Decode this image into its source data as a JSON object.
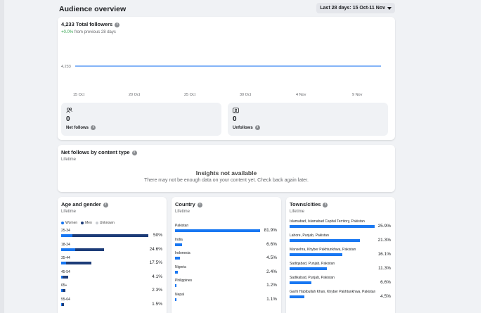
{
  "header": {
    "title": "Audience overview",
    "date_range": "Last 28 days: 15 Oct-11 Nov"
  },
  "overview": {
    "title": "4,233 Total followers",
    "delta_value": "+0.0%",
    "delta_suffix": " from previous 28 days",
    "net_follows": {
      "value": "0",
      "label": "Net follows"
    },
    "unfollows": {
      "value": "0",
      "label": "Unfollows"
    }
  },
  "chart_data": {
    "type": "line",
    "x": [
      "15 Oct",
      "20 Oct",
      "25 Oct",
      "30 Oct",
      "4 Nov",
      "9 Nov"
    ],
    "series": [
      {
        "values": [
          4233,
          4233,
          4233,
          4233,
          4233,
          4233
        ]
      }
    ],
    "y_tick_label": "4,233",
    "x_tick_labels": [
      "15 Oct",
      "20 Oct",
      "25 Oct",
      "30 Oct",
      "4 Nov",
      "9 Nov"
    ],
    "color": "#5b9bf5",
    "grid": false
  },
  "content_type": {
    "title": "Net follows by content type",
    "subtitle": "Lifetime",
    "empty_title": "Insights not available",
    "empty_body": "There may not be enough data on your content yet. Check back again later."
  },
  "age_gender": {
    "title": "Age and gender",
    "subtitle": "Lifetime",
    "legend": [
      {
        "label": "Women",
        "color": "#1877f2"
      },
      {
        "label": "Men",
        "color": "#1d3c78"
      },
      {
        "label": "Unknown",
        "color": "#c9ccd1"
      }
    ],
    "rows": [
      {
        "label": "25-34",
        "pct": "50%",
        "women": 0.13,
        "men": 0.87
      },
      {
        "label": "18-24",
        "pct": "24.6%",
        "women": 0.33,
        "men": 0.67
      },
      {
        "label": "35-44",
        "pct": "17.5%",
        "women": 0.15,
        "men": 0.85
      },
      {
        "label": "45-54",
        "pct": "4.1%",
        "women": 0.2,
        "men": 0.8
      },
      {
        "label": "65+",
        "pct": "2.3%",
        "women": 0.3,
        "men": 0.7
      },
      {
        "label": "55-64",
        "pct": "1.5%",
        "women": 0.25,
        "men": 0.75
      }
    ],
    "bar_scale_max": 50
  },
  "country": {
    "title": "Country",
    "subtitle": "Lifetime",
    "rows": [
      {
        "label": "Pakistan",
        "pct": "81.9%",
        "value": 81.9
      },
      {
        "label": "India",
        "pct": "6.6%",
        "value": 6.6
      },
      {
        "label": "Indonesia",
        "pct": "4.5%",
        "value": 4.5
      },
      {
        "label": "Nigeria",
        "pct": "2.4%",
        "value": 2.4
      },
      {
        "label": "Philippines",
        "pct": "1.2%",
        "value": 1.2
      },
      {
        "label": "Nepal",
        "pct": "1.1%",
        "value": 1.1
      }
    ],
    "bar_scale_max": 81.9
  },
  "towns": {
    "title": "Towns/cities",
    "subtitle": "Lifetime",
    "rows": [
      {
        "label": "Islamabad, Islamabad Capital Territory, Pakistan",
        "pct": "25.9%",
        "value": 25.9
      },
      {
        "label": "Lahore, Punjab, Pakistan",
        "pct": "21.3%",
        "value": 21.3
      },
      {
        "label": "Mansehra, Khyber Pakhtunkhwa, Pakistan",
        "pct": "16.1%",
        "value": 16.1
      },
      {
        "label": "Sadiqabad, Punjab, Pakistan",
        "pct": "11.3%",
        "value": 11.3
      },
      {
        "label": "Sadikabad, Punjab, Pakistan",
        "pct": "6.6%",
        "value": 6.6
      },
      {
        "label": "Garhi Habibullah Khan, Khyber Pakhtunkhwa, Pakistan",
        "pct": "4.5%",
        "value": 4.5
      }
    ],
    "bar_scale_max": 25.9
  }
}
